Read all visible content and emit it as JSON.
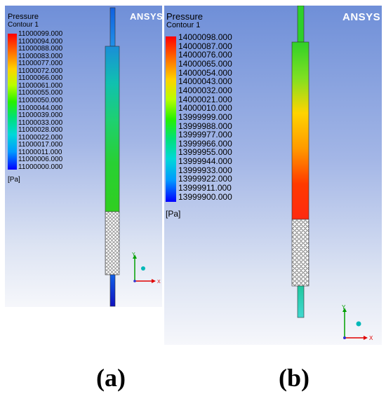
{
  "panel_a": {
    "brand": "ANSYS",
    "legend_title": "Pressure",
    "legend_subtitle": "Contour 1",
    "unit": "[Pa]",
    "ticks": [
      "11000099.000",
      "11000094.000",
      "11000088.000",
      "11000083.000",
      "11000077.000",
      "11000072.000",
      "11000066.000",
      "11000061.000",
      "11000055.000",
      "11000050.000",
      "11000044.000",
      "11000039.000",
      "11000033.000",
      "11000028.000",
      "11000022.000",
      "11000017.000",
      "11000011.000",
      "11000006.000",
      "11000000.000"
    ],
    "axis_y": "Y",
    "axis_x": "X",
    "caption": "(a)"
  },
  "panel_b": {
    "brand": "ANSYS",
    "legend_title": "Pressure",
    "legend_subtitle": "Contour 1",
    "unit": "[Pa]",
    "ticks": [
      "14000098.000",
      "14000087.000",
      "14000076.000",
      "14000065.000",
      "14000054.000",
      "14000043.000",
      "14000032.000",
      "14000021.000",
      "14000010.000",
      "13999999.000",
      "13999988.000",
      "13999977.000",
      "13999966.000",
      "13999955.000",
      "13999944.000",
      "13999933.000",
      "13999922.000",
      "13999911.000",
      "13999900.000"
    ],
    "axis_y": "Y",
    "axis_x": "X",
    "caption": "(b)"
  },
  "colors": {
    "axis_y": "#00a000",
    "axis_x": "#e00000",
    "axis_z": "#00b8b8"
  }
}
